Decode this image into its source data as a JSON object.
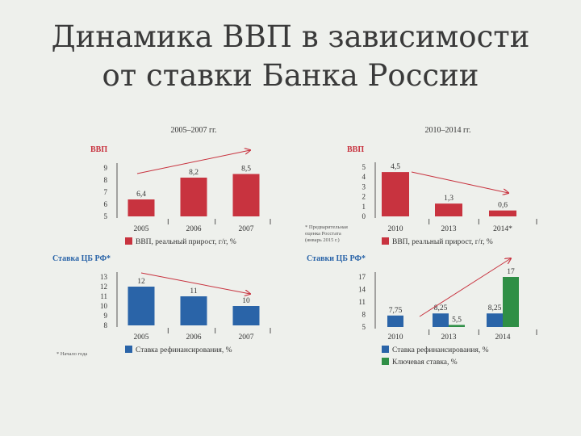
{
  "slide": {
    "title_line1": "Динамика ВВП в зависимости",
    "title_line2": "от ставки Банка России"
  },
  "colors": {
    "gdp": "#c8333f",
    "rate": "#2a64a8",
    "key_rate": "#2f8f46",
    "trend": "#c8333f",
    "axis": "#555555"
  },
  "chart_data": [
    {
      "id": "gdp_2005",
      "type": "bar",
      "period_title": "2005–2007 гг.",
      "label": "ВВП",
      "categories": [
        "2005",
        "2006",
        "2007"
      ],
      "series": [
        {
          "name": "ВВП, реальный прирост, г/г, %",
          "values": [
            6.4,
            8.2,
            8.5
          ],
          "value_labels": [
            "6,4",
            "8,2",
            "8,5"
          ],
          "color": "gdp"
        }
      ],
      "yticks": [
        "9",
        "8",
        "7",
        "6",
        "5"
      ],
      "ylim": [
        5,
        9
      ],
      "legend": [
        "ВВП, реальный прирост, г/г, %"
      ]
    },
    {
      "id": "gdp_2010",
      "type": "bar",
      "period_title": "2010–2014 гг.",
      "label": "ВВП",
      "categories": [
        "2010",
        "2013",
        "2014*"
      ],
      "series": [
        {
          "name": "ВВП, реальный прирост, г/г, %",
          "values": [
            4.5,
            1.3,
            0.6
          ],
          "value_labels": [
            "4,5",
            "1,3",
            "0,6"
          ],
          "color": "gdp"
        }
      ],
      "yticks": [
        "5",
        "4",
        "3",
        "2",
        "1",
        "0"
      ],
      "ylim": [
        0,
        5
      ],
      "footnote": [
        "* Предварительная",
        "оценка Росстата",
        "(январь 2015 г.)"
      ],
      "legend": [
        "ВВП, реальный прирост, г/г, %"
      ]
    },
    {
      "id": "rate_2005",
      "type": "bar",
      "label": "Ставка ЦБ РФ*",
      "categories": [
        "2005",
        "2006",
        "2007"
      ],
      "series": [
        {
          "name": "Ставка рефинансирования, %",
          "values": [
            12,
            11,
            10
          ],
          "value_labels": [
            "12",
            "11",
            "10"
          ],
          "color": "rate"
        }
      ],
      "yticks": [
        "13",
        "12",
        "11",
        "10",
        "9",
        "8"
      ],
      "ylim": [
        8,
        13
      ],
      "footnote": [
        "* Начало года"
      ],
      "legend": [
        "Ставка рефинансирования, %"
      ]
    },
    {
      "id": "rate_2010",
      "type": "bar",
      "label": "Ставки ЦБ РФ*",
      "categories": [
        "2010",
        "2013",
        "2014"
      ],
      "series": [
        {
          "name": "Ставка рефинансирования, %",
          "values": [
            7.75,
            8.25,
            8.25
          ],
          "value_labels": [
            "7,75",
            "8,25",
            "8,25"
          ],
          "color": "rate"
        },
        {
          "name": "Ключевая ставка, %",
          "values": [
            null,
            5.5,
            17
          ],
          "value_labels": [
            "",
            "5,5",
            "17"
          ],
          "color": "key_rate"
        }
      ],
      "yticks": [
        "17",
        "14",
        "11",
        "8",
        "5"
      ],
      "ylim": [
        5,
        17
      ],
      "legend": [
        "Ставка рефинансирования, %",
        "Ключевая ставка, %"
      ]
    }
  ]
}
